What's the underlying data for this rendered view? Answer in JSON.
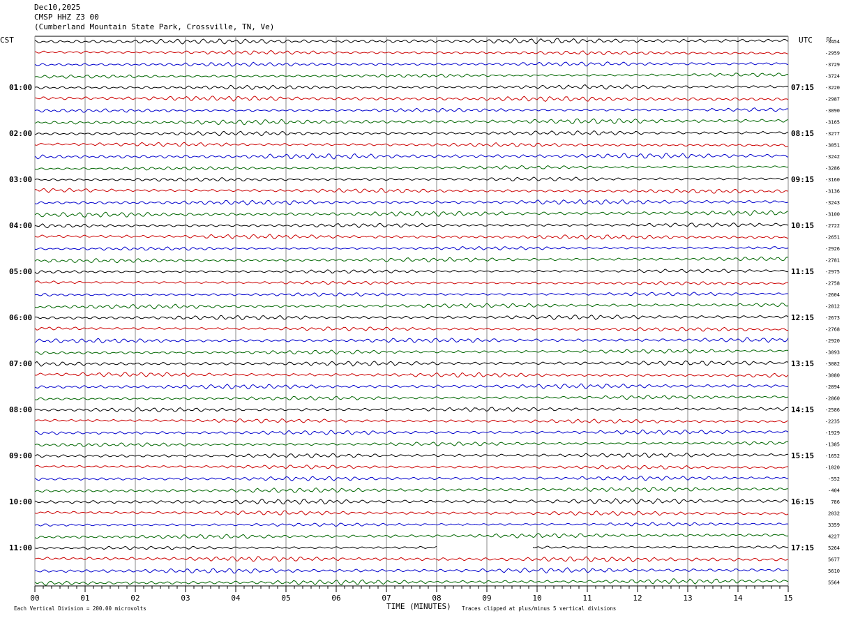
{
  "header": {
    "date": "Dec10,2025",
    "station": "CMSP HHZ Z3 00",
    "location": "(Cumberland Mountain State Park, Crossville, TN, Ve)"
  },
  "labels": {
    "left_timezone": "CST",
    "right_timezone": "UTC",
    "dc_label": "DC",
    "x_axis_title": "TIME (MINUTES)",
    "scale_note": "Each Vertical Division =  200.00 microvolts",
    "clip_note": "Traces clipped at plus/minus 5 vertical divisions"
  },
  "chart_data": {
    "type": "line",
    "xlabel": "TIME (MINUTES)",
    "xlim": [
      0,
      15
    ],
    "x_ticks": [
      "00",
      "01",
      "02",
      "03",
      "04",
      "05",
      "06",
      "07",
      "08",
      "09",
      "10",
      "11",
      "12",
      "13",
      "14",
      "15"
    ],
    "left_hour_labels": [
      "01:00",
      "02:00",
      "03:00",
      "04:00",
      "05:00",
      "06:00",
      "07:00",
      "08:00",
      "09:00",
      "10:00",
      "11:00"
    ],
    "right_hour_labels": [
      "07:15",
      "08:15",
      "09:15",
      "10:15",
      "11:15",
      "12:15",
      "13:15",
      "14:15",
      "15:15",
      "16:15",
      "17:15"
    ],
    "trace_colors": [
      "#000000",
      "#cc0000",
      "#0000cc",
      "#006600"
    ],
    "trace_count": 48,
    "dc_offsets": [
      "-3454",
      "-2959",
      "-3729",
      "-3724",
      "-3220",
      "-2987",
      "-3090",
      "-3165",
      "-3277",
      "-3051",
      "-3242",
      "-3286",
      "-3160",
      "-3136",
      "-3243",
      "-3100",
      "-2722",
      "-2651",
      "-2926",
      "-2781",
      "-2975",
      "-2758",
      "-2604",
      "-2812",
      "-2673",
      "-2768",
      "-2920",
      "-3093",
      "-3082",
      "-3080",
      "-2894",
      "-2860",
      "-2586",
      "-2235",
      "-1929",
      "-1385",
      "-1652",
      "-1020",
      "-552",
      "-404",
      "786",
      "2032",
      "3359",
      "4227",
      "5264",
      "5677",
      "5610",
      "5564"
    ],
    "data_gap": {
      "trace": 44,
      "from_minute": 8.0,
      "to_minute": 9.9
    }
  }
}
